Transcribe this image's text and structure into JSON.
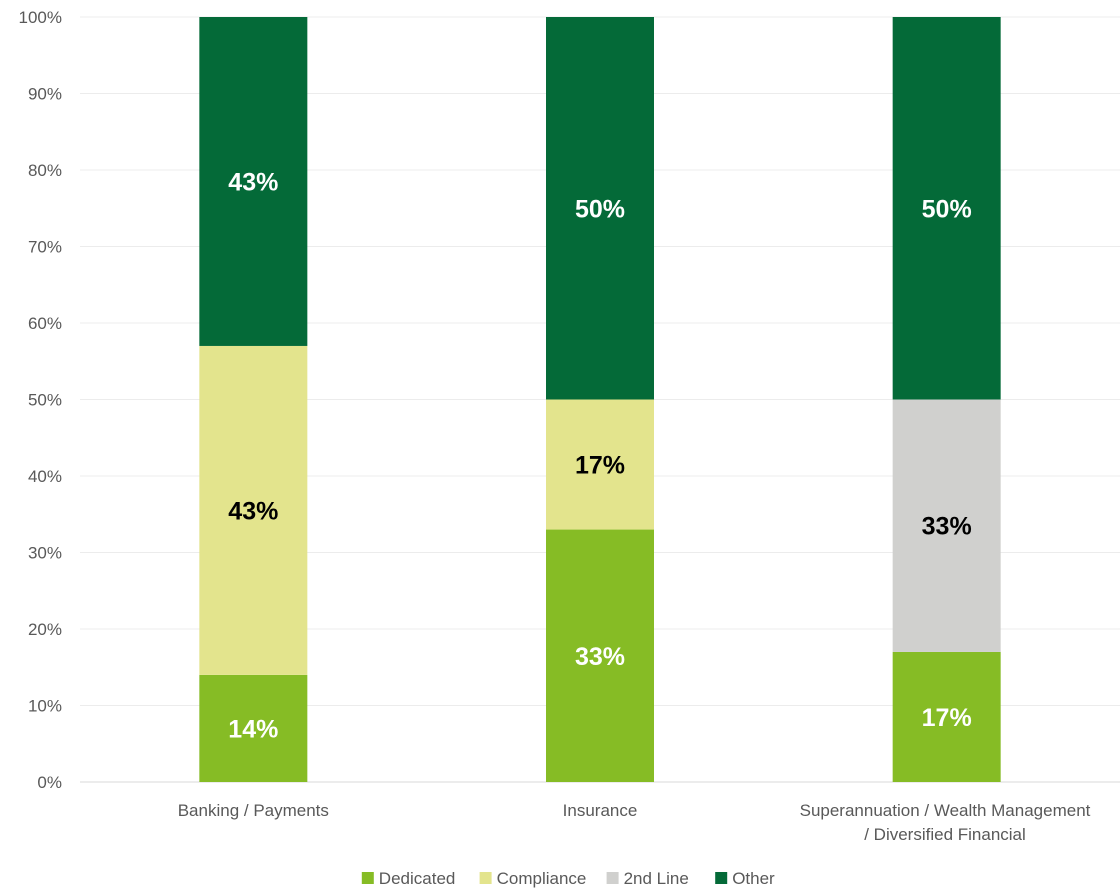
{
  "chart_data": {
    "type": "bar",
    "stacked": true,
    "title": "",
    "xlabel": "",
    "ylabel": "",
    "ylim": [
      0,
      100
    ],
    "y_ticks": [
      "0%",
      "10%",
      "20%",
      "30%",
      "40%",
      "50%",
      "60%",
      "70%",
      "80%",
      "90%",
      "100%"
    ],
    "grid": true,
    "legend_position": "bottom",
    "categories": [
      [
        "Banking / Payments"
      ],
      [
        "Insurance"
      ],
      [
        "Superannuation / Wealth Management",
        "/ Diversified Financial"
      ]
    ],
    "series": [
      {
        "name": "Dedicated",
        "color": "#86bc25",
        "label_color": "#ffffff",
        "values": [
          14,
          33,
          17
        ],
        "labels": [
          "14%",
          "33%",
          "17%"
        ]
      },
      {
        "name": "Compliance",
        "color": "#e3e48d",
        "label_color": "#000000",
        "values": [
          43,
          17,
          0
        ],
        "labels": [
          "43%",
          "17%",
          ""
        ]
      },
      {
        "name": "2nd Line",
        "color": "#d0d0ce",
        "label_color": "#000000",
        "values": [
          0,
          0,
          33
        ],
        "labels": [
          "",
          "",
          "33%"
        ]
      },
      {
        "name": "Other",
        "color": "#046a38",
        "label_color": "#ffffff",
        "values": [
          43,
          50,
          50
        ],
        "labels": [
          "43%",
          "50%",
          "50%"
        ]
      }
    ]
  }
}
